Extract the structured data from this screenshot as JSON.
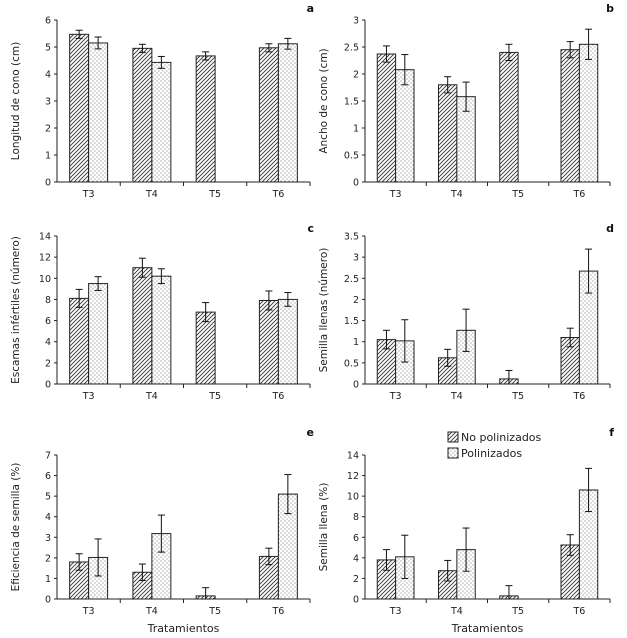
{
  "legend": {
    "items": [
      {
        "label": "No polinizados",
        "pattern": "hatch"
      },
      {
        "label": "Polinizados",
        "pattern": "dots"
      }
    ]
  },
  "chart_data": [
    {
      "type": "bar",
      "panel": "a",
      "ylabel": "Longitud de cono (cm)",
      "xlabel": "",
      "categories": [
        "T3",
        "T4",
        "T5",
        "T6"
      ],
      "ylim": [
        0,
        6
      ],
      "yticks": [
        0,
        1,
        2,
        3,
        4,
        5,
        6
      ],
      "series": [
        {
          "name": "No polinizados",
          "values": [
            5.47,
            4.95,
            4.67,
            4.97
          ],
          "errors": [
            0.15,
            0.15,
            0.15,
            0.15
          ]
        },
        {
          "name": "Polinizados",
          "values": [
            5.15,
            4.43,
            null,
            5.12
          ],
          "errors": [
            0.22,
            0.22,
            null,
            0.2
          ]
        }
      ]
    },
    {
      "type": "bar",
      "panel": "b",
      "ylabel": "Ancho de cono (cm)",
      "xlabel": "",
      "categories": [
        "T3",
        "T4",
        "T5",
        "T6"
      ],
      "ylim": [
        0,
        3
      ],
      "yticks": [
        0,
        0.5,
        1,
        1.5,
        2,
        2.5,
        3
      ],
      "series": [
        {
          "name": "No polinizados",
          "values": [
            2.37,
            1.8,
            2.4,
            2.45
          ],
          "errors": [
            0.15,
            0.15,
            0.15,
            0.15
          ]
        },
        {
          "name": "Polinizados",
          "values": [
            2.08,
            1.58,
            null,
            2.55
          ],
          "errors": [
            0.28,
            0.27,
            null,
            0.28
          ]
        }
      ]
    },
    {
      "type": "bar",
      "panel": "c",
      "ylabel": "Escamas infértiles (número)",
      "xlabel": "",
      "categories": [
        "T3",
        "T4",
        "T5",
        "T6"
      ],
      "ylim": [
        0,
        14
      ],
      "yticks": [
        0,
        2,
        4,
        6,
        8,
        10,
        12,
        14
      ],
      "series": [
        {
          "name": "No polinizados",
          "values": [
            8.1,
            11.0,
            6.8,
            7.9
          ],
          "errors": [
            0.85,
            0.9,
            0.9,
            0.9
          ]
        },
        {
          "name": "Polinizados",
          "values": [
            9.5,
            10.2,
            null,
            8.0
          ],
          "errors": [
            0.65,
            0.7,
            null,
            0.65
          ]
        }
      ]
    },
    {
      "type": "bar",
      "panel": "d",
      "ylabel": "Semilla llenas (número)",
      "xlabel": "",
      "categories": [
        "T3",
        "T4",
        "T5",
        "T6"
      ],
      "ylim": [
        0,
        3.5
      ],
      "yticks": [
        0,
        0.5,
        1,
        1.5,
        2,
        2.5,
        3,
        3.5
      ],
      "series": [
        {
          "name": "No polinizados",
          "values": [
            1.05,
            0.62,
            0.12,
            1.1
          ],
          "errors": [
            0.22,
            0.2,
            0.2,
            0.22
          ]
        },
        {
          "name": "Polinizados",
          "values": [
            1.02,
            1.27,
            null,
            2.67
          ],
          "errors": [
            0.5,
            0.5,
            null,
            0.52
          ]
        }
      ]
    },
    {
      "type": "bar",
      "panel": "e",
      "ylabel": "Eficiencia de semilla (%)",
      "xlabel": "Tratamientos",
      "categories": [
        "T3",
        "T4",
        "T5",
        "T6"
      ],
      "ylim": [
        0,
        7
      ],
      "yticks": [
        0,
        1,
        2,
        3,
        4,
        5,
        6,
        7
      ],
      "series": [
        {
          "name": "No polinizados",
          "values": [
            1.8,
            1.3,
            0.15,
            2.07
          ],
          "errors": [
            0.4,
            0.4,
            0.4,
            0.4
          ]
        },
        {
          "name": "Polinizados",
          "values": [
            2.02,
            3.18,
            null,
            5.1
          ],
          "errors": [
            0.9,
            0.9,
            null,
            0.95
          ]
        }
      ]
    },
    {
      "type": "bar",
      "panel": "f",
      "ylabel": "Semilla llena (%)",
      "xlabel": "Tratamientos",
      "categories": [
        "T3",
        "T4",
        "T5",
        "T6"
      ],
      "ylim": [
        0,
        14
      ],
      "yticks": [
        0,
        2,
        4,
        6,
        8,
        10,
        12,
        14
      ],
      "series": [
        {
          "name": "No polinizados",
          "values": [
            3.8,
            2.75,
            0.3,
            5.25
          ],
          "errors": [
            1.0,
            1.0,
            1.0,
            1.0
          ]
        },
        {
          "name": "Polinizados",
          "values": [
            4.1,
            4.8,
            null,
            10.6
          ],
          "errors": [
            2.1,
            2.1,
            null,
            2.1
          ]
        }
      ]
    }
  ]
}
